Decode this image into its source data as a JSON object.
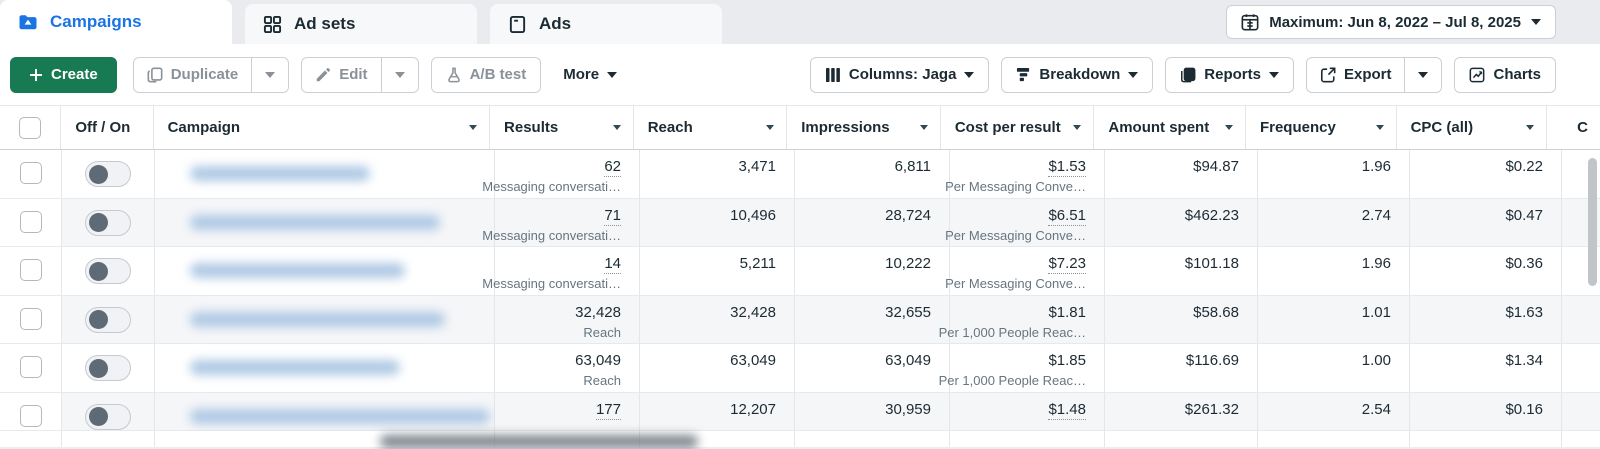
{
  "tabs": [
    {
      "label": "Campaigns",
      "icon": "folder-campaign-icon",
      "active": true
    },
    {
      "label": "Ad sets",
      "icon": "ad-sets-grid-icon",
      "active": false
    },
    {
      "label": "Ads",
      "icon": "ads-card-icon",
      "active": false
    }
  ],
  "date_range": {
    "label": "Maximum: Jun 8, 2022 – Jul 8, 2025",
    "icon": "calendar-icon"
  },
  "toolbar": {
    "create_label": "Create",
    "duplicate_label": "Duplicate",
    "edit_label": "Edit",
    "ab_test_label": "A/B test",
    "more_label": "More",
    "columns_label": "Columns: Jaga",
    "breakdown_label": "Breakdown",
    "reports_label": "Reports",
    "export_label": "Export",
    "charts_label": "Charts"
  },
  "table": {
    "headers": {
      "off_on": "Off / On",
      "campaign": "Campaign",
      "results": "Results",
      "reach": "Reach",
      "impressions": "Impressions",
      "cost_per_result": "Cost per result",
      "amount_spent": "Amount spent",
      "frequency": "Frequency",
      "cpc": "CPC (all)",
      "partial_next": "C"
    },
    "rows": [
      {
        "toggle": "off",
        "blur_w": 180,
        "result": "62",
        "result_sub": "Messaging conversati…",
        "result_dotted": true,
        "reach": "3,471",
        "impressions": "6,811",
        "cpr": "$1.53",
        "cpr_sub": "Per Messaging Conve…",
        "cpr_dotted": true,
        "spent": "$94.87",
        "freq": "1.96",
        "cpc": "$0.22"
      },
      {
        "toggle": "off",
        "blur_w": 250,
        "result": "71",
        "result_sub": "Messaging conversati…",
        "result_dotted": true,
        "reach": "10,496",
        "impressions": "28,724",
        "cpr": "$6.51",
        "cpr_sub": "Per Messaging Conve…",
        "cpr_dotted": true,
        "spent": "$462.23",
        "freq": "2.74",
        "cpc": "$0.47"
      },
      {
        "toggle": "off",
        "blur_w": 215,
        "result": "14",
        "result_sub": "Messaging conversati…",
        "result_dotted": true,
        "reach": "5,211",
        "impressions": "10,222",
        "cpr": "$7.23",
        "cpr_sub": "Per Messaging Conve…",
        "cpr_dotted": true,
        "spent": "$101.18",
        "freq": "1.96",
        "cpc": "$0.36"
      },
      {
        "toggle": "off",
        "blur_w": 255,
        "result": "32,428",
        "result_sub": "Reach",
        "result_dotted": false,
        "reach": "32,428",
        "impressions": "32,655",
        "cpr": "$1.81",
        "cpr_sub": "Per 1,000 People Reac…",
        "cpr_dotted": false,
        "spent": "$58.68",
        "freq": "1.01",
        "cpc": "$1.63"
      },
      {
        "toggle": "off",
        "blur_w": 210,
        "result": "63,049",
        "result_sub": "Reach",
        "result_dotted": false,
        "reach": "63,049",
        "impressions": "63,049",
        "cpr": "$1.85",
        "cpr_sub": "Per 1,000 People Reac…",
        "cpr_dotted": false,
        "spent": "$116.69",
        "freq": "1.00",
        "cpc": "$1.34"
      },
      {
        "toggle": "off",
        "blur_w": 300,
        "result": "177",
        "result_sub": "",
        "result_dotted": true,
        "reach": "12,207",
        "impressions": "30,959",
        "cpr": "$1.48",
        "cpr_sub": "",
        "cpr_dotted": true,
        "spent": "$261.32",
        "freq": "2.54",
        "cpc": "$0.16",
        "short": true
      }
    ]
  },
  "colors": {
    "accent_blue": "#1b74e4",
    "create_green": "#177a52",
    "text_dark": "#1c2b33",
    "text_sub": "#667580",
    "row_stripe": "#f5f6f8"
  }
}
